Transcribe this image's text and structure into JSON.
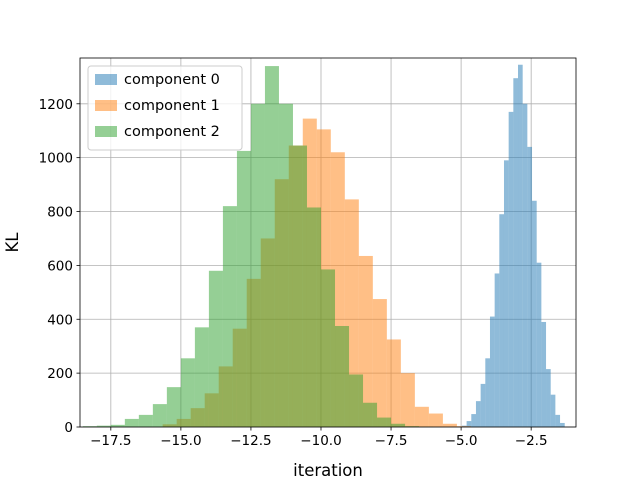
{
  "chart_data": {
    "type": "histogram",
    "xlabel": "iteration",
    "ylabel": "KL",
    "xlim": [
      -18.6,
      -0.9
    ],
    "ylim": [
      0,
      1370
    ],
    "xticks": [
      -17.5,
      -15.0,
      -12.5,
      -10.0,
      -7.5,
      -5.0,
      -2.5
    ],
    "xtick_labels": [
      "−17.5",
      "−15.0",
      "−12.5",
      "−10.0",
      "−7.5",
      "−5.0",
      "−2.5"
    ],
    "yticks": [
      0,
      200,
      400,
      600,
      800,
      1000,
      1200
    ],
    "ytick_labels": [
      "0",
      "200",
      "400",
      "600",
      "800",
      "1000",
      "1200"
    ],
    "grid": true,
    "legend_position": "top-left",
    "series": [
      {
        "name": "component 0",
        "color": "#1f77b4",
        "alpha": 0.5,
        "bin_start": -4.97,
        "bin_width": 0.1667,
        "counts": [
          5,
          22,
          48,
          96,
          160,
          255,
          410,
          570,
          790,
          990,
          1170,
          1295,
          1345,
          1200,
          1040,
          840,
          610,
          390,
          215,
          120,
          45,
          15
        ]
      },
      {
        "name": "component 1",
        "color": "#ff7f0e",
        "alpha": 0.5,
        "bin_start": -15.65,
        "bin_width": 0.5,
        "counts": [
          10,
          30,
          70,
          125,
          225,
          365,
          550,
          700,
          920,
          1045,
          1145,
          1105,
          1020,
          845,
          635,
          475,
          325,
          200,
          75,
          50,
          12,
          3
        ]
      },
      {
        "name": "component 2",
        "color": "#2ca02c",
        "alpha": 0.5,
        "bin_start": -18.5,
        "bin_width": 0.5,
        "counts": [
          3,
          5,
          8,
          30,
          45,
          85,
          148,
          255,
          370,
          580,
          820,
          1025,
          1200,
          1340,
          1200,
          1045,
          815,
          585,
          375,
          195,
          90,
          35,
          12,
          3,
          1
        ]
      }
    ]
  }
}
